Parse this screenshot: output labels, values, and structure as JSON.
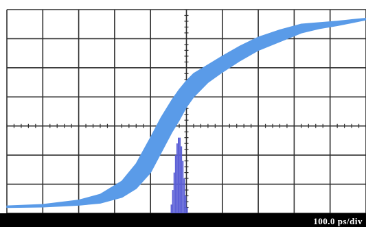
{
  "chart_data": {
    "type": "line",
    "title": "",
    "xlabel": "",
    "ylabel": "",
    "grid": true,
    "timebase_label": "100.0 ps/div",
    "x_divisions": 10,
    "y_divisions": 7,
    "xlim": [
      0,
      1000
    ],
    "ylim": [
      0,
      7
    ],
    "x_unit": "ps",
    "trace_color": "#5a9be8",
    "histogram_color": "#5b5fd6",
    "grid_color": "#2e2e2e",
    "background_color": "#ffffff",
    "series": [
      {
        "x": [
          0,
          100,
          200,
          260,
          320,
          360,
          400,
          430,
          460,
          480,
          500,
          520,
          560,
          600,
          650,
          700,
          760,
          820,
          870,
          920,
          960,
          1000
        ],
        "y_upper": [
          0.25,
          0.3,
          0.45,
          0.65,
          1.1,
          1.7,
          2.6,
          3.3,
          3.9,
          4.25,
          4.55,
          4.8,
          5.1,
          5.4,
          5.75,
          6.05,
          6.3,
          6.5,
          6.55,
          6.6,
          6.65,
          6.7
        ],
        "y_lower": [
          0.2,
          0.22,
          0.28,
          0.35,
          0.55,
          0.85,
          1.4,
          2.1,
          2.8,
          3.2,
          3.65,
          4.0,
          4.5,
          4.85,
          5.25,
          5.6,
          5.9,
          6.2,
          6.35,
          6.45,
          6.55,
          6.65
        ]
      }
    ],
    "histogram": {
      "x": [
        458,
        462,
        466,
        470,
        474,
        478,
        482,
        486,
        490,
        494,
        498,
        502
      ],
      "height": [
        0.3,
        0.8,
        1.4,
        2.0,
        2.4,
        2.6,
        2.6,
        2.3,
        1.8,
        1.2,
        0.6,
        0.2
      ]
    }
  }
}
